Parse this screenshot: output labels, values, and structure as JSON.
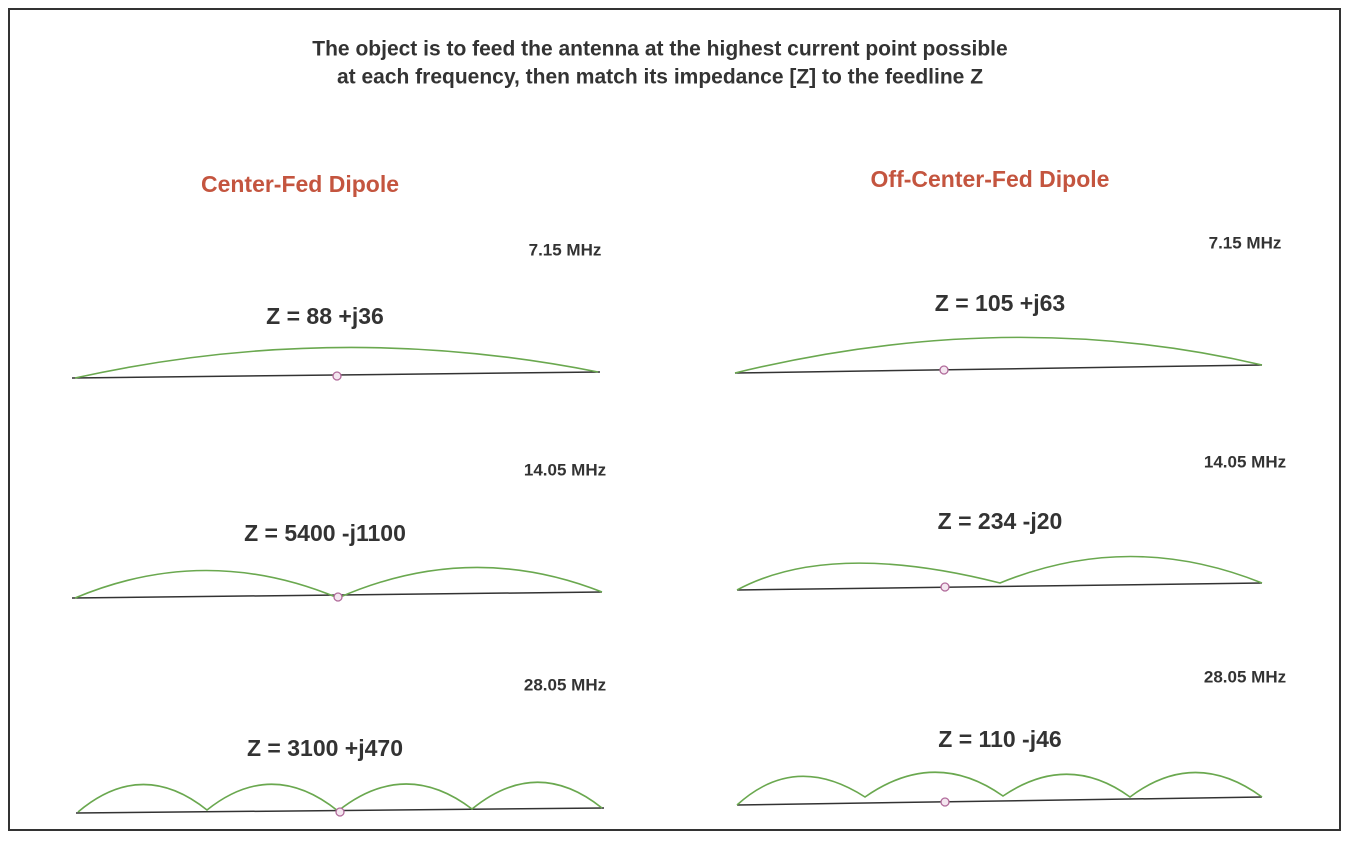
{
  "title": [
    "The object is to feed the antenna at the highest current point possible",
    "at each frequency, then match its impedance [Z] to the feedline Z"
  ],
  "columns": [
    {
      "heading": "Center-Fed Dipole",
      "panels": [
        {
          "frequency": "7.15 MHz",
          "impedance": "Z = 88 +j36"
        },
        {
          "frequency": "14.05 MHz",
          "impedance": "Z = 5400 -j1100"
        },
        {
          "frequency": "28.05 MHz",
          "impedance": "Z = 3100 +j470"
        }
      ]
    },
    {
      "heading": "Off-Center-Fed Dipole",
      "panels": [
        {
          "frequency": "7.15 MHz",
          "impedance": "Z = 105 +j63"
        },
        {
          "frequency": "14.05 MHz",
          "impedance": "Z = 234 -j20"
        },
        {
          "frequency": "28.05 MHz",
          "impedance": "Z = 110 -j46"
        }
      ]
    }
  ]
}
